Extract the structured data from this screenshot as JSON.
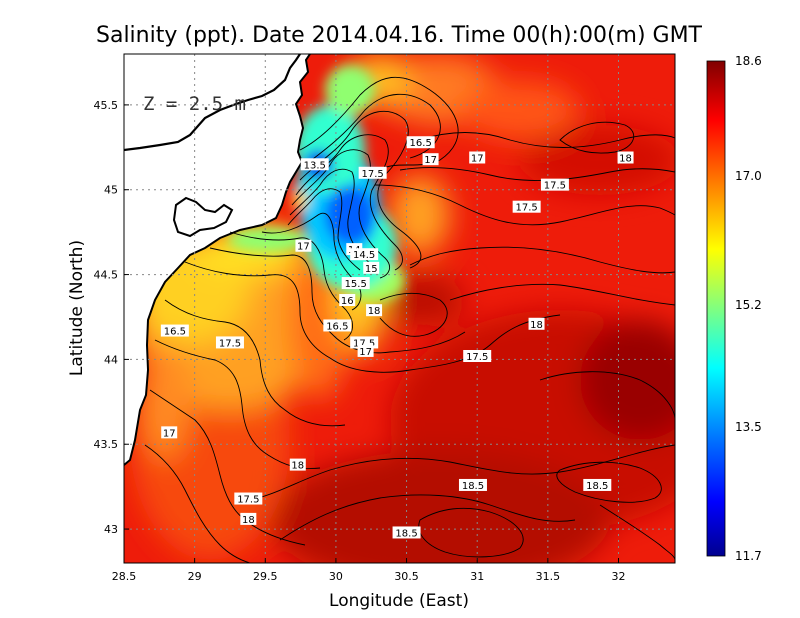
{
  "chart_data": {
    "type": "heatmap",
    "title": "Salinity (ppt). Date 2014.04.16. Time 00(h):00(m) GMT",
    "xlabel": "Longitude (East)",
    "ylabel": "Latitude (North)",
    "depth_label": "Z = 2.5 m",
    "xlim": [
      28.5,
      32.4
    ],
    "ylim": [
      42.8,
      45.8
    ],
    "x_ticks": [
      "28.5",
      "29",
      "29.5",
      "30",
      "30.5",
      "31",
      "31.5",
      "32"
    ],
    "y_ticks": [
      "43",
      "43.5",
      "44",
      "44.5",
      "45",
      "45.5"
    ],
    "grid": "dotted",
    "colorbar": {
      "range": [
        11.7,
        18.6
      ],
      "ticks": [
        "18.6",
        "17.0",
        "15.2",
        "13.5",
        "11.7"
      ],
      "colors": [
        "#00008f",
        "#0000ff",
        "#0080ff",
        "#00ffff",
        "#80ff80",
        "#ffff00",
        "#ff8000",
        "#ff0000",
        "#800000"
      ]
    },
    "contour_labels": [
      {
        "text": "13.5",
        "lon": 29.85,
        "lat": 45.15
      },
      {
        "text": "14",
        "lon": 30.13,
        "lat": 44.65
      },
      {
        "text": "14.5",
        "lon": 30.2,
        "lat": 44.62
      },
      {
        "text": "15",
        "lon": 30.25,
        "lat": 44.54
      },
      {
        "text": "15.5",
        "lon": 30.14,
        "lat": 44.45
      },
      {
        "text": "16",
        "lon": 30.08,
        "lat": 44.35
      },
      {
        "text": "16.5",
        "lon": 30.01,
        "lat": 44.2
      },
      {
        "text": "17.5",
        "lon": 30.2,
        "lat": 44.1
      },
      {
        "text": "17",
        "lon": 30.21,
        "lat": 44.05
      },
      {
        "text": "18",
        "lon": 30.27,
        "lat": 44.29
      },
      {
        "text": "17",
        "lon": 29.77,
        "lat": 44.67
      },
      {
        "text": "17.5",
        "lon": 30.26,
        "lat": 45.1
      },
      {
        "text": "16.5",
        "lon": 30.6,
        "lat": 45.28
      },
      {
        "text": "17",
        "lon": 30.67,
        "lat": 45.18
      },
      {
        "text": "17",
        "lon": 31.0,
        "lat": 45.19
      },
      {
        "text": "18",
        "lon": 32.05,
        "lat": 45.19
      },
      {
        "text": "17.5",
        "lon": 31.55,
        "lat": 45.03
      },
      {
        "text": "17.5",
        "lon": 31.35,
        "lat": 44.9
      },
      {
        "text": "18",
        "lon": 31.42,
        "lat": 44.21
      },
      {
        "text": "17.5",
        "lon": 31.0,
        "lat": 44.02
      },
      {
        "text": "16.5",
        "lon": 28.86,
        "lat": 44.17
      },
      {
        "text": "17.5",
        "lon": 29.25,
        "lat": 44.1
      },
      {
        "text": "17",
        "lon": 28.82,
        "lat": 43.57
      },
      {
        "text": "18",
        "lon": 29.73,
        "lat": 43.38
      },
      {
        "text": "18.5",
        "lon": 30.97,
        "lat": 43.26
      },
      {
        "text": "18.5",
        "lon": 31.85,
        "lat": 43.26
      },
      {
        "text": "17.5",
        "lon": 29.38,
        "lat": 43.18
      },
      {
        "text": "18",
        "lon": 29.38,
        "lat": 43.06
      },
      {
        "text": "18.5",
        "lon": 30.5,
        "lat": 42.98
      }
    ]
  }
}
